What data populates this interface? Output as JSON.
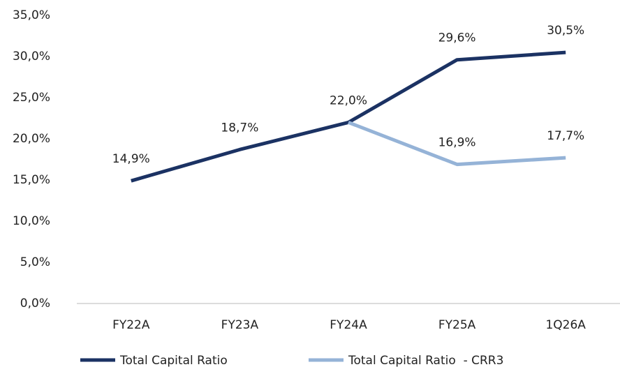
{
  "chart_data": {
    "type": "line",
    "categories": [
      "FY22A",
      "FY23A",
      "FY24A",
      "FY25A",
      "1Q26A"
    ],
    "series": [
      {
        "name": "Total Capital Ratio",
        "color": "#1b3263",
        "values": [
          14.9,
          18.7,
          22.0,
          29.6,
          30.5
        ],
        "value_labels": [
          "14,9%",
          "18,7%",
          "22,0%",
          "29,6%",
          "30,5%"
        ]
      },
      {
        "name": "Total Capital Ratio  - CRR3",
        "color": "#95b3d7",
        "values": [
          null,
          null,
          22.0,
          16.9,
          17.7
        ],
        "value_labels": [
          null,
          null,
          null,
          "16,9%",
          "17,7%"
        ]
      }
    ],
    "ylim": [
      0,
      35
    ],
    "yticks": [
      {
        "value": 0,
        "label": "0,0%"
      },
      {
        "value": 5,
        "label": "5,0%"
      },
      {
        "value": 10,
        "label": "10,0%"
      },
      {
        "value": 15,
        "label": "15,0%"
      },
      {
        "value": 20,
        "label": "20,0%"
      },
      {
        "value": 25,
        "label": "25,0%"
      },
      {
        "value": 30,
        "label": "30,0%"
      },
      {
        "value": 35,
        "label": "35,0%"
      }
    ],
    "grid": false,
    "legend": "bottom"
  }
}
